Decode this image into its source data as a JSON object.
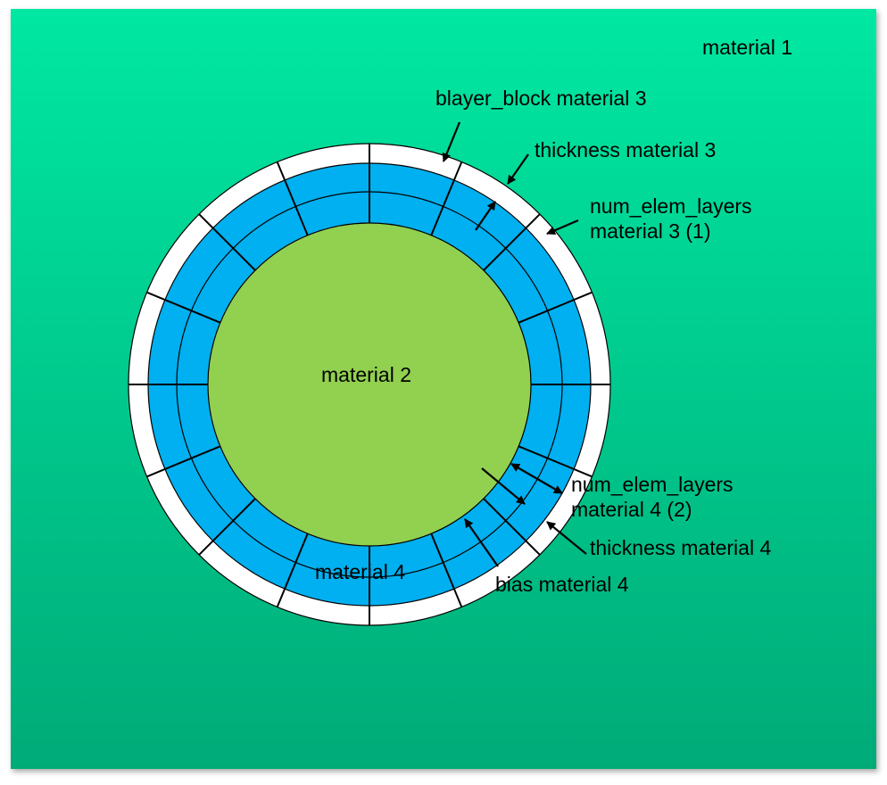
{
  "labels": {
    "material1": "material 1",
    "material2": "material 2",
    "material4": "material 4",
    "blayer_block_m3": "blayer_block material 3",
    "thickness_m3": "thickness material 3",
    "num_elem_m3_line1": "num_elem_layers",
    "num_elem_m3_line2": "material 3 (1)",
    "num_elem_m4_line1": "num_elem_layers",
    "num_elem_m4_line2": "material 4 (2)",
    "thickness_m4": "thickness material 4",
    "bias_m4": "bias material 4"
  },
  "colors": {
    "background_top": "#00e8a2",
    "background_bottom": "#00ab78",
    "material2_core": "#92d050",
    "material3_4_ring": "#00b0f0",
    "boundary_ring": "#ffffff"
  },
  "segments": 16
}
